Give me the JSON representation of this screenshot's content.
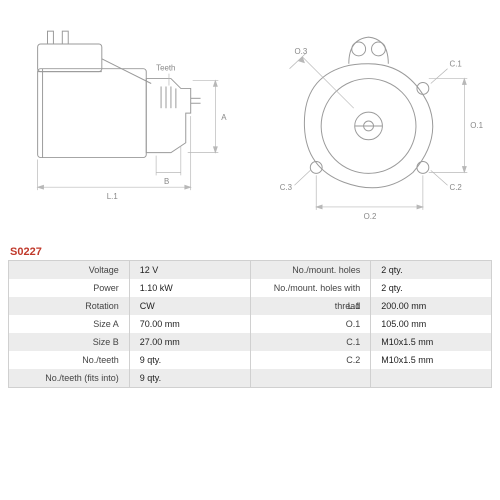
{
  "part_code": "S0227",
  "diagrams": {
    "left": {
      "labels": {
        "teeth": "Teeth",
        "A": "A",
        "B": "B",
        "L1": "L.1"
      },
      "stroke_color": "#9a9a9a",
      "dim_color": "#b0b0b0"
    },
    "right": {
      "labels": {
        "O1": "O.1",
        "O2": "O.2",
        "O3": "O.3",
        "C1": "C.1",
        "C2": "C.2",
        "C3": "C.3"
      },
      "stroke_color": "#9a9a9a",
      "dim_color": "#b0b0b0"
    }
  },
  "specs_left": [
    {
      "label": "Voltage",
      "value": "12 V"
    },
    {
      "label": "Power",
      "value": "1.10 kW"
    },
    {
      "label": "Rotation",
      "value": "CW"
    },
    {
      "label": "Size A",
      "value": "70.00 mm"
    },
    {
      "label": "Size B",
      "value": "27.00 mm"
    },
    {
      "label": "No./teeth",
      "value": "9 qty."
    },
    {
      "label": "No./teeth (fits into)",
      "value": "9 qty."
    }
  ],
  "specs_right": [
    {
      "label": "No./mount. holes",
      "value": "2 qty."
    },
    {
      "label": "No./mount. holes with thread",
      "value": "2 qty."
    },
    {
      "label": "L.1",
      "value": "200.00 mm"
    },
    {
      "label": "O.1",
      "value": "105.00 mm"
    },
    {
      "label": "C.1",
      "value": "M10x1.5 mm"
    },
    {
      "label": "C.2",
      "value": "M10x1.5 mm"
    },
    {
      "label": "",
      "value": ""
    }
  ],
  "colors": {
    "row_odd": "#ececec",
    "row_even": "#ffffff",
    "border": "#d0d0d0",
    "code": "#c0392b"
  }
}
